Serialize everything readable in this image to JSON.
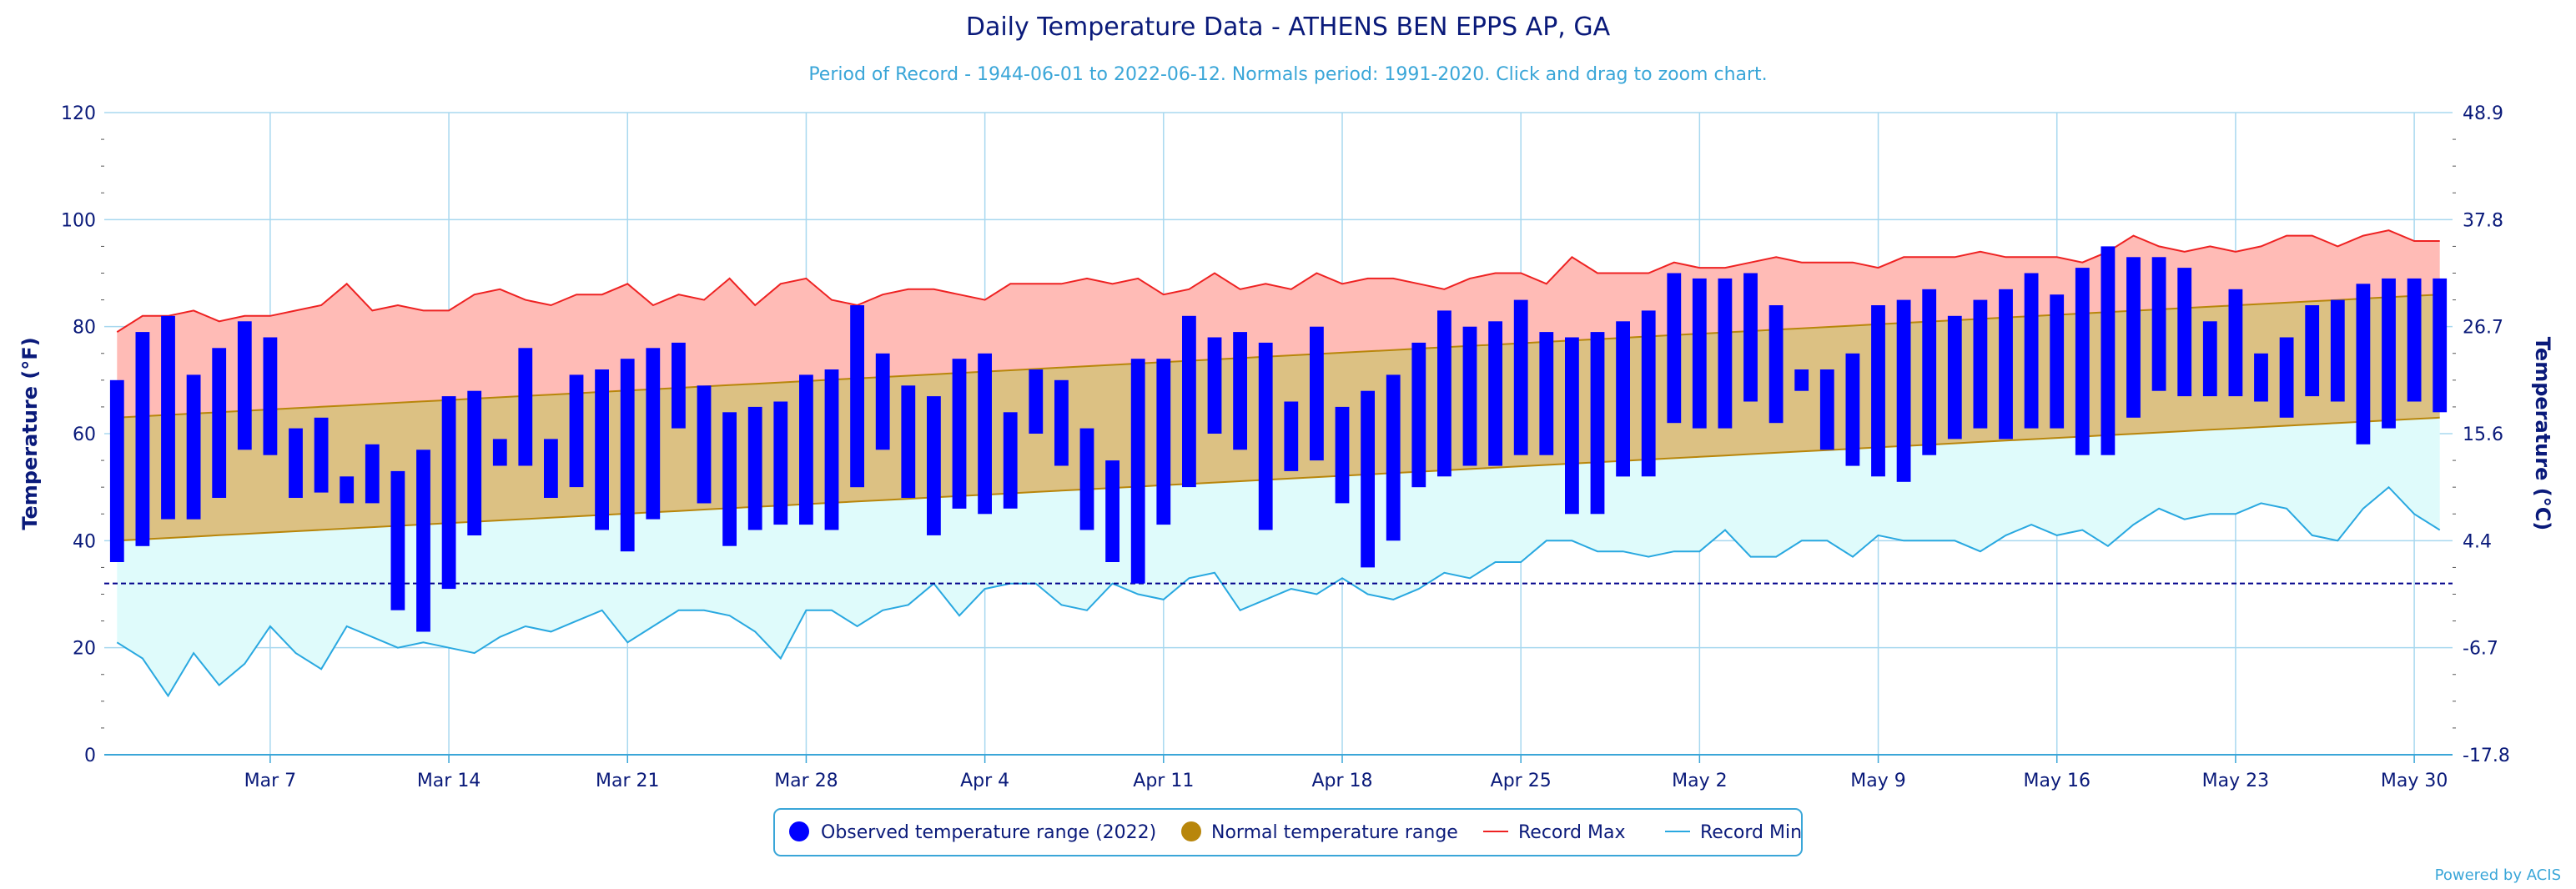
{
  "chart_data": {
    "type": "bar",
    "title": "Daily Temperature Data - ATHENS BEN EPPS AP, GA",
    "subtitle": "Period of Record - 1944-06-01 to 2022-06-12. Normals period: 1991-2020. Click and drag to zoom chart.",
    "ylabel": "Temperature (°F)",
    "ylabel_right": "Temperature (°C)",
    "ylim": [
      0,
      120
    ],
    "yticks": [
      0,
      20,
      40,
      60,
      80,
      100,
      120
    ],
    "yticks_right": [
      "-17.8",
      "-6.7",
      "4.4",
      "15.6",
      "26.7",
      "37.8",
      "48.9"
    ],
    "freezing_line": 32,
    "x_start": "Mar 1",
    "xticks": [
      {
        "day": 6,
        "label": "Mar 7"
      },
      {
        "day": 13,
        "label": "Mar 14"
      },
      {
        "day": 20,
        "label": "Mar 21"
      },
      {
        "day": 27,
        "label": "Mar 28"
      },
      {
        "day": 34,
        "label": "Apr 4"
      },
      {
        "day": 41,
        "label": "Apr 11"
      },
      {
        "day": 48,
        "label": "Apr 18"
      },
      {
        "day": 55,
        "label": "Apr 25"
      },
      {
        "day": 62,
        "label": "May 2"
      },
      {
        "day": 69,
        "label": "May 9"
      },
      {
        "day": 76,
        "label": "May 16"
      },
      {
        "day": 83,
        "label": "May 23"
      },
      {
        "day": 90,
        "label": "May 30"
      }
    ],
    "grid": true,
    "legend_position": "bottom-center",
    "colors": {
      "observed": "#0000ff",
      "normal_fill": "#dcc183",
      "normal_line": "#b8860b",
      "record_max_line": "#ee2222",
      "record_max_fill": "#ffbbb6",
      "record_min_line": "#29a8e0",
      "record_min_fill": "#dffbfb",
      "freezing_line": "#00008b"
    },
    "series": [
      {
        "name": "Observed temperature range (2022)",
        "lows": [
          36,
          39,
          44,
          44,
          48,
          57,
          56,
          48,
          49,
          47,
          47,
          27,
          23,
          31,
          41,
          54,
          54,
          48,
          50,
          42,
          38,
          44,
          61,
          47,
          39,
          42,
          43,
          43,
          42,
          50,
          57,
          48,
          41,
          46,
          45,
          46,
          60,
          54,
          42,
          36,
          32,
          43,
          50,
          60,
          57,
          42,
          53,
          55,
          47,
          35,
          40,
          50,
          52,
          54,
          54,
          56,
          56,
          45,
          45,
          52,
          52,
          62,
          61,
          61,
          66,
          62,
          68,
          57,
          54,
          52,
          51,
          56,
          59,
          61,
          59,
          61,
          61,
          56,
          56,
          63,
          68,
          67,
          67,
          67,
          66,
          63,
          67,
          66,
          58,
          61,
          66,
          64
        ],
        "highs": [
          70,
          79,
          82,
          71,
          76,
          81,
          78,
          61,
          63,
          52,
          58,
          53,
          57,
          67,
          68,
          59,
          76,
          59,
          71,
          72,
          74,
          76,
          77,
          69,
          64,
          65,
          66,
          71,
          72,
          84,
          75,
          69,
          67,
          74,
          75,
          64,
          72,
          70,
          61,
          55,
          74,
          74,
          82,
          78,
          79,
          77,
          66,
          80,
          65,
          68,
          71,
          77,
          83,
          80,
          81,
          85,
          79,
          78,
          79,
          81,
          83,
          90,
          89,
          89,
          90,
          84,
          72,
          72,
          75,
          84,
          85,
          87,
          82,
          85,
          87,
          90,
          86,
          91,
          95,
          93,
          93,
          91,
          81,
          87,
          75,
          78,
          84,
          85,
          88,
          89,
          89,
          89
        ]
      },
      {
        "name": "Normal temperature range",
        "low_start": 40,
        "low_end": 63,
        "high_start": 63,
        "high_end": 86
      },
      {
        "name": "Record Max",
        "values": [
          79,
          82,
          82,
          83,
          81,
          82,
          82,
          83,
          84,
          88,
          83,
          84,
          83,
          83,
          86,
          87,
          85,
          84,
          86,
          86,
          88,
          84,
          86,
          85,
          89,
          84,
          88,
          89,
          85,
          84,
          86,
          87,
          87,
          86,
          85,
          88,
          88,
          88,
          89,
          88,
          89,
          86,
          87,
          90,
          87,
          88,
          87,
          90,
          88,
          89,
          89,
          88,
          87,
          89,
          90,
          90,
          88,
          93,
          90,
          90,
          90,
          92,
          91,
          91,
          92,
          93,
          92,
          92,
          92,
          91,
          93,
          93,
          93,
          94,
          93,
          93,
          93,
          92,
          94,
          97,
          95,
          94,
          95,
          94,
          95,
          97,
          97,
          95,
          97,
          98,
          96,
          96
        ]
      },
      {
        "name": "Record Min",
        "values": [
          21,
          18,
          11,
          19,
          13,
          17,
          24,
          19,
          16,
          24,
          22,
          20,
          21,
          20,
          19,
          22,
          24,
          23,
          25,
          27,
          21,
          24,
          27,
          27,
          26,
          23,
          18,
          27,
          27,
          24,
          27,
          28,
          32,
          26,
          31,
          32,
          32,
          28,
          27,
          32,
          30,
          29,
          33,
          34,
          27,
          29,
          31,
          30,
          33,
          30,
          29,
          31,
          34,
          33,
          36,
          36,
          40,
          40,
          38,
          38,
          37,
          38,
          38,
          42,
          37,
          37,
          40,
          40,
          37,
          41,
          40,
          40,
          40,
          38,
          41,
          43,
          41,
          42,
          39,
          43,
          46,
          44,
          45,
          45,
          47,
          46,
          41,
          40,
          46,
          50,
          45,
          42
        ]
      }
    ],
    "legend": [
      {
        "label": "Observed temperature range (2022)",
        "marker": "circle",
        "color": "#0000ff"
      },
      {
        "label": "Normal temperature range",
        "marker": "circle",
        "color": "#b8860b"
      },
      {
        "label": "Record Max",
        "marker": "line",
        "color": "#ee2222"
      },
      {
        "label": "Record Min",
        "marker": "line",
        "color": "#29a8e0"
      }
    ],
    "credit": "Powered by ACIS"
  }
}
